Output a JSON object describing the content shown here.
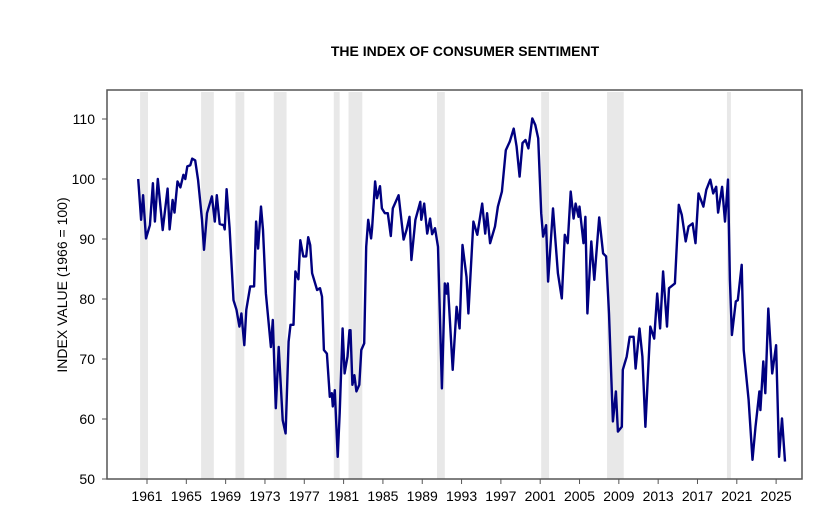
{
  "chart_data": {
    "type": "line",
    "title": "THE INDEX OF CONSUMER SENTIMENT",
    "xlabel": "",
    "ylabel": "INDEX VALUE (1966 = 100)",
    "ylim": [
      50,
      110
    ],
    "xlim": [
      1959.5,
      2027.6
    ],
    "yticks": [
      50,
      60,
      70,
      80,
      90,
      100,
      110
    ],
    "xticks": [
      1961,
      1965,
      1969,
      1973,
      1977,
      1981,
      1985,
      1989,
      1993,
      1997,
      2001,
      2005,
      2009,
      2013,
      2017,
      2021,
      2025
    ],
    "grid": false,
    "line_color": "#000080",
    "shade_color": "#e8e8e8",
    "shaded_periods": [
      [
        1960.3,
        1961.1
      ],
      [
        1966.5,
        1967.8
      ],
      [
        1970.0,
        1970.9
      ],
      [
        1973.9,
        1975.2
      ],
      [
        1980.0,
        1980.6
      ],
      [
        1981.5,
        1982.9
      ],
      [
        1990.5,
        1991.3
      ],
      [
        2001.1,
        2001.9
      ],
      [
        2007.8,
        2009.5
      ],
      [
        2020.0,
        2020.4
      ]
    ],
    "series": [
      {
        "name": "Index of Consumer Sentiment",
        "x": [
          1960.1,
          1960.4,
          1960.6,
          1960.9,
          1961.3,
          1961.6,
          1961.8,
          1962.1,
          1962.6,
          1963.1,
          1963.3,
          1963.6,
          1963.8,
          1964.1,
          1964.4,
          1964.7,
          1964.9,
          1965.1,
          1965.4,
          1965.6,
          1965.9,
          1966.2,
          1966.6,
          1966.8,
          1967.1,
          1967.6,
          1967.9,
          1968.1,
          1968.4,
          1968.8,
          1968.9,
          1969.1,
          1969.4,
          1969.8,
          1970.1,
          1970.4,
          1970.6,
          1970.9,
          1971.1,
          1971.5,
          1971.9,
          1972.1,
          1972.3,
          1972.6,
          1972.8,
          1973.1,
          1973.6,
          1973.8,
          1974.1,
          1974.4,
          1974.8,
          1975.1,
          1975.4,
          1975.6,
          1975.9,
          1976.1,
          1976.4,
          1976.6,
          1976.9,
          1977.2,
          1977.4,
          1977.6,
          1977.8,
          1978.3,
          1978.6,
          1978.8,
          1979.0,
          1979.3,
          1979.6,
          1979.8,
          1979.9,
          1980.1,
          1980.4,
          1980.6,
          1980.9,
          1981.1,
          1981.4,
          1981.6,
          1981.7,
          1981.9,
          1982.1,
          1982.3,
          1982.6,
          1982.8,
          1983.1,
          1983.3,
          1983.5,
          1983.8,
          1983.9,
          1984.2,
          1984.4,
          1984.7,
          1984.9,
          1985.2,
          1985.5,
          1985.8,
          1986.0,
          1986.6,
          1987.1,
          1987.4,
          1987.7,
          1987.9,
          1988.3,
          1988.8,
          1988.9,
          1989.2,
          1989.5,
          1989.8,
          1990.0,
          1990.3,
          1990.6,
          1991.0,
          1991.3,
          1991.5,
          1991.6,
          1992.1,
          1992.5,
          1992.8,
          1993.1,
          1993.5,
          1993.7,
          1994.2,
          1994.6,
          1995.1,
          1995.4,
          1995.6,
          1995.9,
          1996.4,
          1996.7,
          1997.1,
          1997.5,
          1997.9,
          1998.3,
          1998.6,
          1998.9,
          1999.2,
          1999.5,
          1999.8,
          2000.2,
          2000.5,
          2000.8,
          2001.1,
          2001.3,
          2001.6,
          2001.8,
          2002.3,
          2002.8,
          2003.2,
          2003.5,
          2003.8,
          2004.1,
          2004.4,
          2004.6,
          2004.9,
          2005.0,
          2005.4,
          2005.6,
          2005.8,
          2006.2,
          2006.5,
          2007.0,
          2007.4,
          2007.7,
          2008.0,
          2008.4,
          2008.7,
          2008.9,
          2009.3,
          2009.4,
          2009.8,
          2010.1,
          2010.5,
          2010.7,
          2011.1,
          2011.4,
          2011.7,
          2012.2,
          2012.6,
          2012.9,
          2013.2,
          2013.5,
          2013.9,
          2014.1,
          2014.7,
          2015.1,
          2015.4,
          2015.8,
          2016.1,
          2016.5,
          2016.8,
          2017.1,
          2017.6,
          2017.9,
          2018.3,
          2018.6,
          2018.9,
          2019.1,
          2019.5,
          2019.8,
          2020.1,
          2020.3,
          2020.5,
          2020.9,
          2021.1,
          2021.5,
          2021.7,
          2022.2,
          2022.6,
          2022.9,
          2023.3,
          2023.4,
          2023.7,
          2023.9,
          2024.2,
          2024.6,
          2025.0,
          2025.3,
          2025.6,
          2025.9
        ],
        "y": [
          100,
          93.2,
          97.3,
          90.1,
          92.3,
          99.3,
          92.9,
          100,
          91.5,
          98.4,
          91.6,
          96.5,
          94.4,
          99.6,
          98.6,
          100.7,
          100,
          102.1,
          102.3,
          103.4,
          103.1,
          99.8,
          93.2,
          88.2,
          94.3,
          97.1,
          92.9,
          97.3,
          92.5,
          92.3,
          91.6,
          98.3,
          91.8,
          79.8,
          78.2,
          75.4,
          77.6,
          72.3,
          78.2,
          82.1,
          82.1,
          92.9,
          88.4,
          95.4,
          91.5,
          80.9,
          72,
          76.5,
          61.8,
          72,
          59.8,
          57.6,
          72.9,
          75.7,
          75.7,
          84.6,
          83.3,
          89.8,
          87.1,
          87.1,
          90.3,
          89,
          84.3,
          81.5,
          81.8,
          80.4,
          71.5,
          70.9,
          63.7,
          64.3,
          62.1,
          64.8,
          53.7,
          61,
          75.1,
          67.6,
          70.4,
          74.8,
          74.8,
          65.7,
          67.3,
          64.6,
          65.7,
          71.5,
          72.6,
          88.7,
          93.2,
          90.1,
          91.8,
          99.6,
          96.8,
          98.8,
          95.1,
          94.3,
          94.3,
          90.5,
          95.1,
          97.3,
          89.9,
          91.5,
          93.7,
          86.5,
          93.2,
          96.2,
          93.2,
          95.9,
          90.9,
          93.4,
          90.8,
          91.8,
          88.7,
          65.1,
          82.6,
          80.9,
          82.6,
          68.2,
          78.7,
          75.1,
          89,
          83.7,
          77.6,
          92.9,
          90.7,
          95.9,
          90.9,
          94.3,
          89.3,
          92.1,
          95.4,
          97.9,
          104.8,
          106.2,
          108.4,
          105.4,
          100.4,
          106,
          106.5,
          105.1,
          110.1,
          109,
          106.8,
          94.3,
          90.4,
          92.3,
          82.9,
          95.1,
          84.3,
          80.1,
          90.7,
          89.3,
          97.9,
          93.4,
          95.9,
          93.7,
          95.4,
          89.3,
          93.7,
          77.6,
          89.6,
          83.2,
          93.6,
          87.6,
          87.1,
          77.6,
          59.6,
          64.6,
          57.9,
          58.7,
          68.2,
          70.4,
          73.7,
          73.7,
          68.4,
          75.1,
          70.4,
          58.7,
          75.4,
          73.4,
          80.9,
          75.1,
          84.6,
          75.4,
          81.8,
          82.6,
          95.7,
          94,
          89.6,
          92.1,
          92.6,
          89.3,
          97.6,
          95.4,
          98.2,
          99.9,
          97.6,
          98.7,
          94.4,
          98.7,
          92.9,
          99.9,
          83.2,
          74,
          79.6,
          79.8,
          85.7,
          71.5,
          63.2,
          53.2,
          58.7,
          64.6,
          61.5,
          69.6,
          64.3,
          78.4,
          67.6,
          72.3,
          53.7,
          60.1,
          52.9
        ]
      }
    ]
  }
}
